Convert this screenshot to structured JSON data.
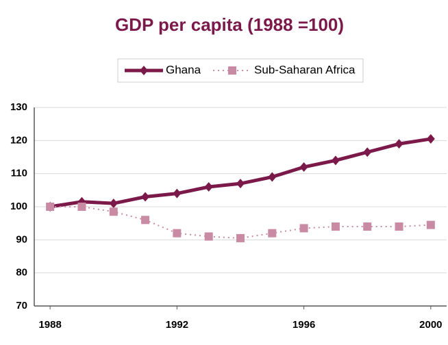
{
  "chart_data": {
    "type": "line",
    "title": "GDP per capita (1988 =100)",
    "x": [
      1988,
      1989,
      1990,
      1991,
      1992,
      1993,
      1994,
      1995,
      1996,
      1997,
      1998,
      1999,
      2000
    ],
    "series": [
      {
        "name": "Ghana",
        "color": "#7b1a4a",
        "marker": "diamond",
        "line": "solid",
        "values": [
          100,
          101.5,
          101,
          103,
          104,
          106,
          107,
          109,
          112,
          114,
          116.5,
          119,
          120.5
        ]
      },
      {
        "name": "Sub-Saharan Africa",
        "color": "#c98aa3",
        "marker": "square",
        "line": "dotted",
        "values": [
          100,
          100,
          98.5,
          96,
          92,
          91,
          90.5,
          92,
          93.5,
          94,
          94,
          94,
          94.5
        ]
      }
    ],
    "xlim": [
      1987.5,
      2000.5
    ],
    "xticks": [
      1988,
      1992,
      1996,
      2000
    ],
    "ylim": [
      70,
      130
    ],
    "yticks": [
      70,
      80,
      90,
      100,
      110,
      120,
      130
    ],
    "grid": true,
    "legend": "top"
  }
}
